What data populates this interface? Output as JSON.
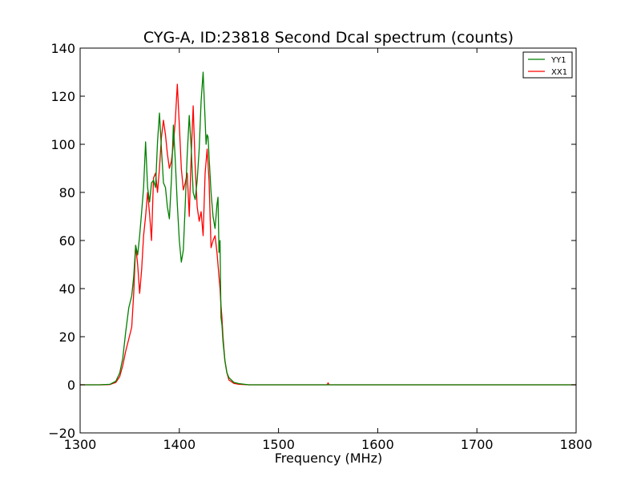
{
  "chart_data": {
    "type": "line",
    "title": "CYG-A, ID:23818 Second Dcal spectrum (counts)",
    "xlabel": "Frequency (MHz)",
    "ylabel": "",
    "xlim": [
      1300,
      1800
    ],
    "ylim": [
      -20,
      140
    ],
    "xticks": [
      1300,
      1400,
      1500,
      1600,
      1700,
      1800
    ],
    "yticks": [
      -20,
      0,
      20,
      40,
      60,
      80,
      100,
      120,
      140
    ],
    "xtick_labels": [
      "1300",
      "1400",
      "1500",
      "1600",
      "1700",
      "1800"
    ],
    "ytick_labels": [
      "−20",
      "0",
      "20",
      "40",
      "60",
      "80",
      "100",
      "120",
      "140"
    ],
    "grid": false,
    "legend_position": "top-right",
    "series": [
      {
        "name": "YY1",
        "color": "#008000",
        "x": [
          1300,
          1320,
          1330,
          1336,
          1340,
          1343,
          1346,
          1349,
          1352,
          1354,
          1356,
          1358,
          1360,
          1362,
          1364,
          1366,
          1368,
          1370,
          1372,
          1374,
          1376,
          1378,
          1380,
          1382,
          1384,
          1386,
          1388,
          1390,
          1392,
          1394,
          1396,
          1398,
          1400,
          1402,
          1404,
          1406,
          1408,
          1410,
          1412,
          1414,
          1416,
          1418,
          1420,
          1422,
          1424,
          1426,
          1427,
          1428,
          1429,
          1430,
          1432,
          1434,
          1436,
          1438,
          1439,
          1440,
          1441,
          1442,
          1443,
          1444,
          1446,
          1448,
          1450,
          1455,
          1460,
          1470,
          1500,
          1550,
          1600,
          1700,
          1800
        ],
        "values": [
          0,
          0,
          0.2,
          1.5,
          5,
          11,
          22,
          32,
          37,
          45,
          58,
          54,
          62,
          72,
          82,
          101,
          82,
          76,
          84,
          85,
          82,
          101,
          113,
          98,
          84,
          82,
          74,
          69,
          85,
          108,
          93,
          75,
          60,
          51,
          56,
          75,
          96,
          112,
          98,
          80,
          77,
          85,
          98,
          118,
          130,
          110,
          100,
          104,
          103,
          95,
          80,
          70,
          65,
          75,
          78,
          55,
          60,
          28,
          25,
          18,
          10,
          5,
          3,
          1,
          0.5,
          0,
          0,
          0,
          0,
          0,
          0
        ]
      },
      {
        "name": "XX1",
        "color": "#ff0000",
        "x": [
          1300,
          1320,
          1330,
          1336,
          1340,
          1343,
          1346,
          1349,
          1352,
          1354,
          1356,
          1358,
          1360,
          1362,
          1364,
          1366,
          1368,
          1370,
          1372,
          1374,
          1376,
          1378,
          1380,
          1382,
          1384,
          1386,
          1388,
          1390,
          1392,
          1394,
          1396,
          1398,
          1400,
          1402,
          1404,
          1406,
          1408,
          1410,
          1412,
          1414,
          1416,
          1418,
          1420,
          1422,
          1424,
          1426,
          1428,
          1430,
          1432,
          1434,
          1436,
          1438,
          1440,
          1441,
          1442,
          1443,
          1444,
          1446,
          1448,
          1450,
          1455,
          1460,
          1470,
          1500,
          1549,
          1550,
          1551,
          1600,
          1700,
          1800
        ],
        "values": [
          0,
          0,
          0.1,
          1,
          3.5,
          8,
          14,
          19,
          24,
          38,
          58,
          50,
          38,
          48,
          62,
          70,
          80,
          71,
          60,
          86,
          88,
          80,
          90,
          103,
          110,
          104,
          96,
          90,
          93,
          100,
          110,
          125,
          108,
          90,
          81,
          84,
          88,
          70,
          96,
          116,
          91,
          74,
          68,
          72,
          62,
          88,
          98,
          85,
          57,
          60,
          62,
          55,
          45,
          40,
          33,
          28,
          20,
          10,
          5,
          2,
          0.6,
          0.2,
          0,
          0,
          0,
          0.8,
          0,
          0,
          0,
          0
        ]
      }
    ]
  }
}
